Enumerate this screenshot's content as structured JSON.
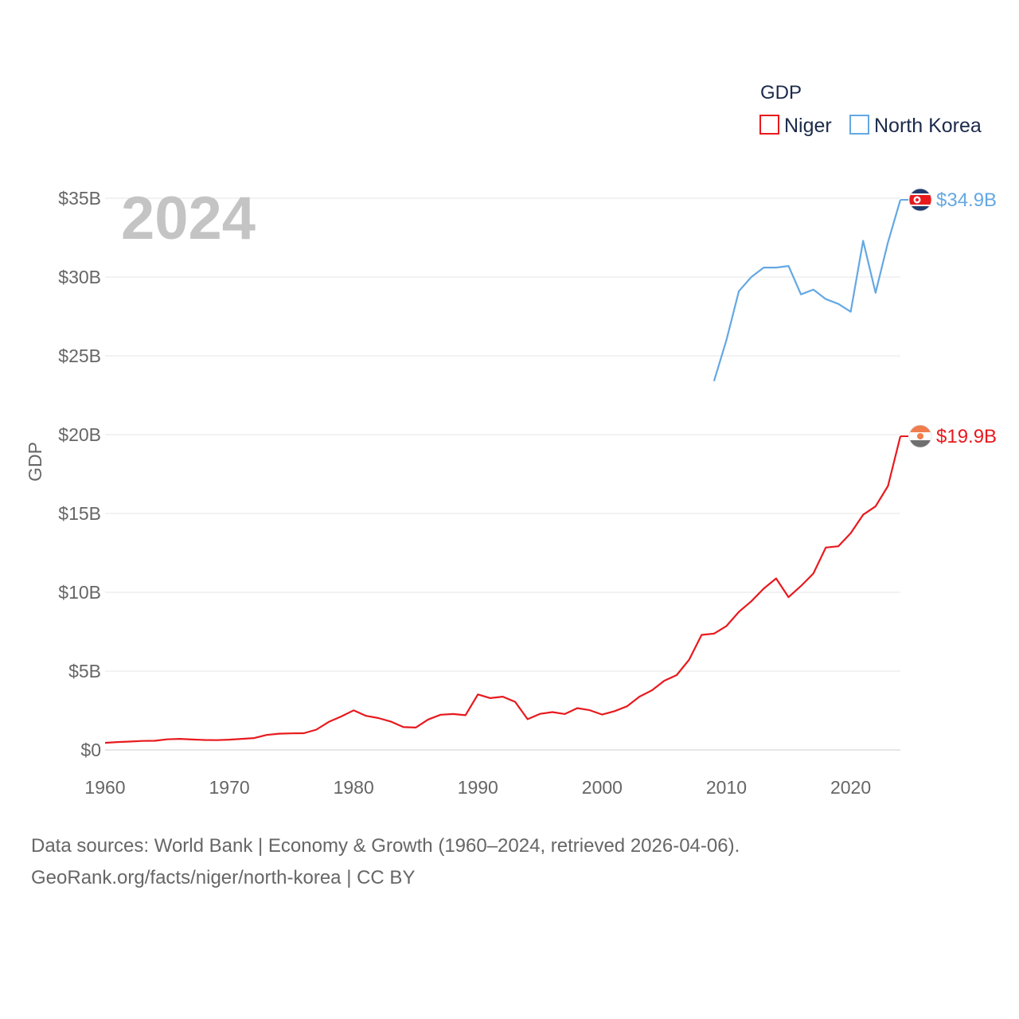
{
  "chart_data": {
    "type": "line",
    "title": "GDP",
    "year_label": "2024",
    "ylabel": "GDP",
    "xlim": [
      1960,
      2024
    ],
    "ylim": [
      0,
      35
    ],
    "x_ticks": [
      1960,
      1970,
      1980,
      1990,
      2000,
      2010,
      2020
    ],
    "y_ticks": [
      {
        "value": 0,
        "label": "$0"
      },
      {
        "value": 5,
        "label": "$5B"
      },
      {
        "value": 10,
        "label": "$10B"
      },
      {
        "value": 15,
        "label": "$15B"
      },
      {
        "value": 20,
        "label": "$20B"
      },
      {
        "value": 25,
        "label": "$25B"
      },
      {
        "value": 30,
        "label": "$30B"
      },
      {
        "value": 35,
        "label": "$35B"
      }
    ],
    "legend_title": "GDP",
    "series": [
      {
        "name": "Niger",
        "color": "#e8191d",
        "end_label": "$19.9B",
        "flag": "niger-flag-icon",
        "x": [
          1960,
          1961,
          1962,
          1963,
          1964,
          1965,
          1966,
          1967,
          1968,
          1969,
          1970,
          1971,
          1972,
          1973,
          1974,
          1975,
          1976,
          1977,
          1978,
          1979,
          1980,
          1981,
          1982,
          1983,
          1984,
          1985,
          1986,
          1987,
          1988,
          1989,
          1990,
          1991,
          1992,
          1993,
          1994,
          1995,
          1996,
          1997,
          1998,
          1999,
          2000,
          2001,
          2002,
          2003,
          2004,
          2005,
          2006,
          2007,
          2008,
          2009,
          2010,
          2011,
          2012,
          2013,
          2014,
          2015,
          2016,
          2017,
          2018,
          2019,
          2020,
          2021,
          2022,
          2023,
          2024
        ],
        "values": [
          0.45,
          0.5,
          0.53,
          0.57,
          0.58,
          0.67,
          0.7,
          0.66,
          0.63,
          0.62,
          0.65,
          0.7,
          0.75,
          0.95,
          1.03,
          1.05,
          1.06,
          1.29,
          1.78,
          2.12,
          2.51,
          2.16,
          2.02,
          1.8,
          1.45,
          1.42,
          1.93,
          2.23,
          2.28,
          2.2,
          3.52,
          3.29,
          3.38,
          3.05,
          1.95,
          2.29,
          2.4,
          2.28,
          2.65,
          2.52,
          2.24,
          2.46,
          2.77,
          3.38,
          3.78,
          4.39,
          4.75,
          5.72,
          7.3,
          7.38,
          7.86,
          8.76,
          9.43,
          10.23,
          10.88,
          9.69,
          10.4,
          11.19,
          12.84,
          12.92,
          13.75,
          14.92,
          15.45,
          16.74,
          19.9
        ]
      },
      {
        "name": "North Korea",
        "color": "#64a8e3",
        "end_label": "$34.9B",
        "flag": "north-korea-flag-icon",
        "x": [
          2009,
          2010,
          2011,
          2012,
          2013,
          2014,
          2015,
          2016,
          2017,
          2018,
          2019,
          2020,
          2021,
          2022,
          2023,
          2024
        ],
        "values": [
          23.4,
          26.0,
          29.1,
          30.0,
          30.6,
          30.6,
          30.7,
          28.9,
          29.2,
          28.6,
          28.3,
          27.8,
          32.3,
          29.0,
          32.2,
          34.9
        ]
      }
    ]
  },
  "source_line1": "Data sources: World Bank | Economy & Growth (1960–2024, retrieved 2026-04-06).",
  "source_line2": "GeoRank.org/facts/niger/north-korea | CC BY"
}
